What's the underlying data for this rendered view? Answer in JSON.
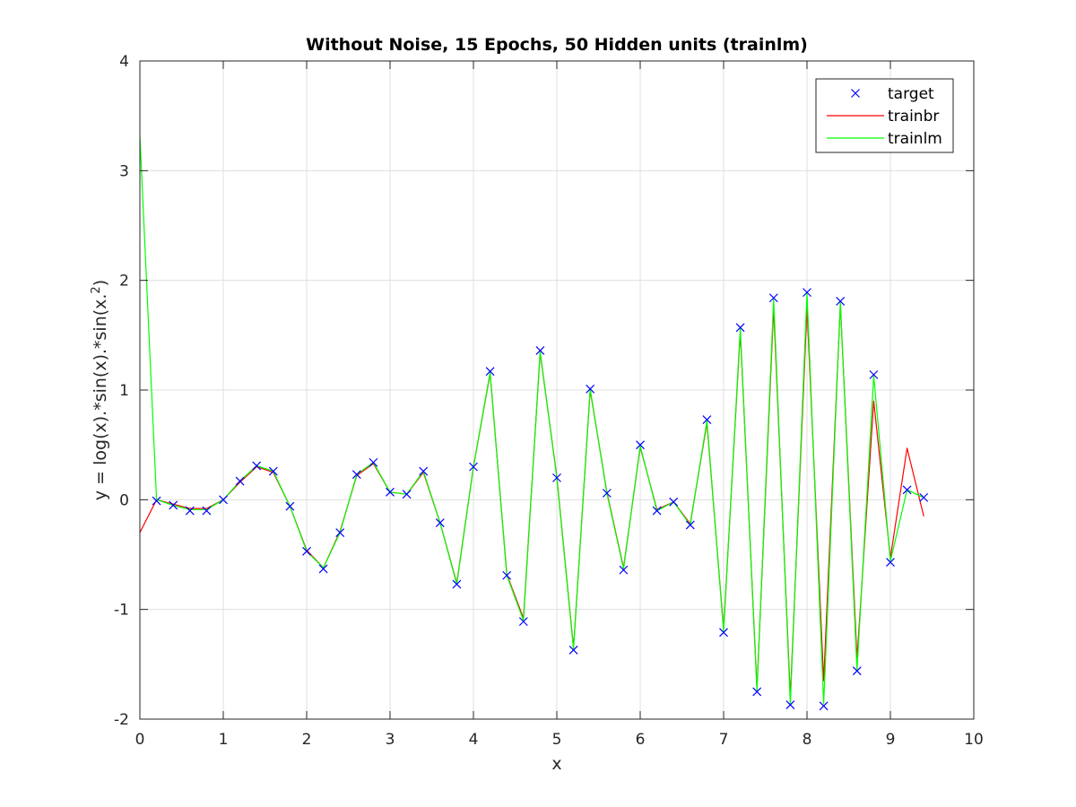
{
  "chart_data": {
    "type": "line",
    "title": "Without Noise, 15 Epochs, 50 Hidden units (trainlm)",
    "xlabel": "x",
    "ylabel": "y = log(x).*sin(x).*sin(x.^2)",
    "xlim": [
      0,
      10
    ],
    "ylim": [
      -2,
      4
    ],
    "xticks": [
      "0",
      "1",
      "2",
      "3",
      "4",
      "5",
      "6",
      "7",
      "8",
      "9",
      "10"
    ],
    "yticks": [
      "-2",
      "-1",
      "0",
      "1",
      "2",
      "3",
      "4"
    ],
    "grid": true,
    "legend_position": "top-right",
    "x": [
      0,
      0.2,
      0.4,
      0.6,
      0.8,
      1.0,
      1.2,
      1.4,
      1.6,
      1.8,
      2.0,
      2.2,
      2.4,
      2.6,
      2.8,
      3.0,
      3.2,
      3.4,
      3.6,
      3.8,
      4.0,
      4.2,
      4.4,
      4.6,
      4.8,
      5.0,
      5.2,
      5.4,
      5.6,
      5.8,
      6.0,
      6.2,
      6.4,
      6.6,
      6.8,
      7.0,
      7.2,
      7.4,
      7.6,
      7.8,
      8.0,
      8.2,
      8.4,
      8.6,
      8.8,
      9.0,
      9.2,
      9.4
    ],
    "series": [
      {
        "name": "target",
        "style": "marker",
        "marker": "x",
        "color": "#0000ff",
        "values": [
          null,
          -0.01,
          -0.05,
          -0.1,
          -0.1,
          0.0,
          0.17,
          0.31,
          0.26,
          -0.06,
          -0.47,
          -0.63,
          -0.3,
          0.23,
          0.34,
          0.07,
          0.05,
          0.26,
          -0.21,
          -0.77,
          0.3,
          1.17,
          -0.69,
          -1.11,
          1.36,
          0.2,
          -1.37,
          1.01,
          0.06,
          -0.64,
          0.5,
          -0.1,
          -0.02,
          -0.23,
          0.73,
          -1.21,
          1.57,
          -1.75,
          1.84,
          -1.87,
          1.89,
          -1.88,
          1.81,
          -1.56,
          1.14,
          -0.57,
          0.09,
          0.02
        ]
      },
      {
        "name": "trainbr",
        "style": "line",
        "color": "#ff0000",
        "values": [
          -0.3,
          0.0,
          -0.04,
          -0.08,
          -0.08,
          0.0,
          0.16,
          0.3,
          0.25,
          -0.06,
          -0.46,
          -0.62,
          -0.29,
          0.22,
          0.33,
          0.07,
          0.05,
          0.25,
          -0.21,
          -0.76,
          0.3,
          1.15,
          -0.68,
          -1.08,
          1.34,
          0.21,
          -1.35,
          1.0,
          0.07,
          -0.62,
          0.48,
          -0.09,
          -0.02,
          -0.22,
          0.7,
          -1.18,
          1.53,
          -1.72,
          1.75,
          -1.8,
          1.75,
          -1.65,
          1.78,
          -1.45,
          0.9,
          -0.53,
          0.47,
          -0.15
        ]
      },
      {
        "name": "trainlm",
        "style": "line",
        "color": "#00ff00",
        "values": [
          3.32,
          0.0,
          -0.05,
          -0.09,
          -0.09,
          0.0,
          0.17,
          0.31,
          0.26,
          -0.06,
          -0.47,
          -0.62,
          -0.3,
          0.23,
          0.34,
          0.07,
          0.05,
          0.26,
          -0.21,
          -0.77,
          0.3,
          1.16,
          -0.69,
          -1.1,
          1.35,
          0.2,
          -1.36,
          1.01,
          0.06,
          -0.63,
          0.49,
          -0.1,
          -0.02,
          -0.23,
          0.72,
          -1.2,
          1.56,
          -1.74,
          1.83,
          -1.86,
          1.88,
          -1.86,
          1.8,
          -1.55,
          1.13,
          -0.56,
          0.09,
          0.02
        ]
      }
    ]
  }
}
